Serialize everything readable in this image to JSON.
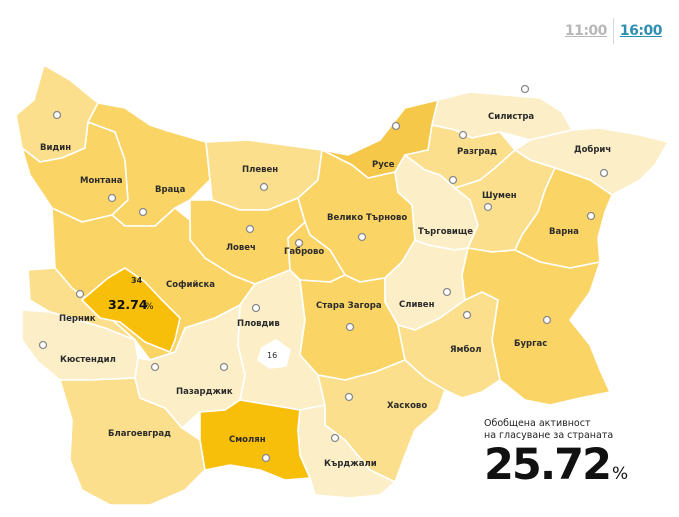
{
  "time_switch": {
    "options": [
      "11:00",
      "16:00"
    ],
    "selected": "16:00"
  },
  "colors": {
    "level_1": "#fcefc8",
    "level_2": "#fbdf8c",
    "level_3": "#fbd466",
    "level_4": "#f6c84a",
    "highlight": "#f7be0a",
    "border": "#ffffff"
  },
  "regions": {
    "vidin": "Видин",
    "montana": "Монтана",
    "vratsa": "Враца",
    "pleven": "Плевен",
    "ruse": "Русе",
    "silistra": "Силистра",
    "razgrad": "Разград",
    "dobrich": "Добрич",
    "shumen": "Шумен",
    "veliko_tarnovo": "Велико Търново",
    "targovishte": "Търговище",
    "varna": "Варна",
    "lovech": "Ловеч",
    "gabrovo": "Габрово",
    "sofia_oblast": "Софийска",
    "sofia_city_turnout": "32.74",
    "sofia_city_partial": "34",
    "pernik": "Перник",
    "kyustendil": "Кюстендил",
    "plovdiv": "Пловдив",
    "plovdiv_city": "16",
    "stara_zagora": "Стара Загора",
    "sliven": "Сливен",
    "yambol": "Ямбол",
    "burgas": "Бургас",
    "pazardzhik": "Пазарджик",
    "haskovo": "Хасково",
    "blagoevgrad": "Благоевград",
    "smolyan": "Смолян",
    "kardzhali": "Кърджали"
  },
  "percent_sign": "%",
  "national": {
    "caption_line1": "Обобщена активност",
    "caption_line2": "на гласуване за страната",
    "value": "25.72",
    "unit": "%"
  }
}
